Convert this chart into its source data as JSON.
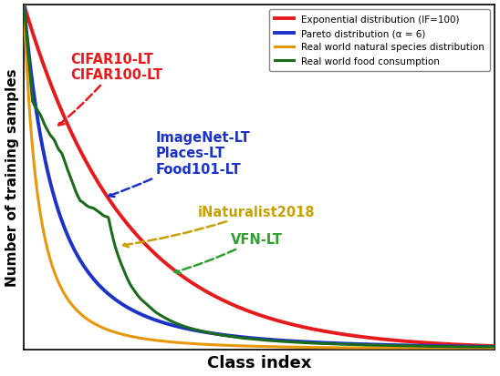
{
  "xlabel": "Class index",
  "ylabel": "Number of training samples",
  "legend_entries": [
    {
      "label": "Exponential distribution (IF=100)",
      "color": "#e8191a",
      "lw": 2.8
    },
    {
      "label": "Pareto distribution (α = 6)",
      "color": "#1c33c8",
      "lw": 2.8
    },
    {
      "label": "Real world natural species distribution",
      "color": "#e8960a",
      "lw": 2.2
    },
    {
      "label": "Real world food consumption",
      "color": "#1a6b1a",
      "lw": 2.2
    }
  ],
  "cifar_text": "CIFAR10-LT\nCIFAR100-LT",
  "cifar_color": "#e8191a",
  "imagenet_text": "ImageNet-LT\nPlaces-LT\nFood101-LT",
  "imagenet_color": "#1c33c8",
  "inat_text": "iNaturalist2018",
  "inat_color": "#c8a000",
  "vfn_text": "VFN-LT",
  "vfn_color": "#2ea02e",
  "bg_color": "#ffffff",
  "annotation_fontsize": 10.5,
  "n_points": 600
}
